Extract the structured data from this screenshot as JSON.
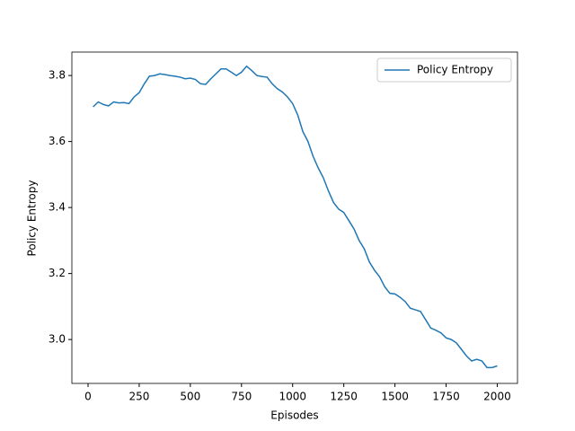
{
  "chart_data": {
    "type": "line",
    "x_label": "Episodes",
    "y_label": "Policy Entropy",
    "legend": "upper right",
    "grid": false,
    "x": [
      25,
      50,
      75,
      100,
      125,
      150,
      175,
      200,
      225,
      250,
      275,
      300,
      325,
      350,
      375,
      400,
      425,
      450,
      475,
      500,
      525,
      550,
      575,
      600,
      625,
      650,
      675,
      700,
      725,
      750,
      775,
      800,
      825,
      850,
      875,
      900,
      925,
      950,
      975,
      1000,
      1025,
      1050,
      1075,
      1100,
      1125,
      1150,
      1175,
      1200,
      1225,
      1250,
      1275,
      1300,
      1325,
      1350,
      1375,
      1400,
      1425,
      1450,
      1475,
      1500,
      1525,
      1550,
      1575,
      1600,
      1625,
      1650,
      1675,
      1700,
      1725,
      1750,
      1775,
      1800,
      1825,
      1850,
      1875,
      1900,
      1925,
      1950,
      1975,
      2000
    ],
    "series": [
      {
        "name": "Policy Entropy",
        "color": "#1f77b4",
        "values": [
          3.705,
          3.72,
          3.712,
          3.708,
          3.72,
          3.717,
          3.718,
          3.715,
          3.735,
          3.748,
          3.775,
          3.798,
          3.8,
          3.805,
          3.803,
          3.8,
          3.798,
          3.795,
          3.79,
          3.792,
          3.788,
          3.775,
          3.773,
          3.79,
          3.805,
          3.82,
          3.82,
          3.81,
          3.8,
          3.81,
          3.828,
          3.815,
          3.8,
          3.797,
          3.795,
          3.775,
          3.76,
          3.75,
          3.735,
          3.715,
          3.68,
          3.63,
          3.6,
          3.555,
          3.52,
          3.49,
          3.45,
          3.415,
          3.395,
          3.385,
          3.36,
          3.335,
          3.3,
          3.275,
          3.235,
          3.21,
          3.19,
          3.16,
          3.14,
          3.138,
          3.128,
          3.115,
          3.095,
          3.09,
          3.085,
          3.06,
          3.035,
          3.028,
          3.02,
          3.005,
          3.0,
          2.99,
          2.97,
          2.95,
          2.935,
          2.94,
          2.935,
          2.915,
          2.915,
          2.92
        ]
      }
    ],
    "xlim": [
      -79,
      2099
    ],
    "ylim": [
      2.867,
      3.871
    ],
    "xticks": [
      0,
      250,
      500,
      750,
      1000,
      1250,
      1500,
      1750,
      2000
    ],
    "yticks": [
      {
        "value": 3,
        "label": "3.0"
      },
      {
        "value": 3.2,
        "label": "3.2"
      },
      {
        "value": 3.4,
        "label": "3.4"
      },
      {
        "value": 3.6,
        "label": "3.6"
      },
      {
        "value": 3.8,
        "label": "3.8"
      }
    ]
  }
}
